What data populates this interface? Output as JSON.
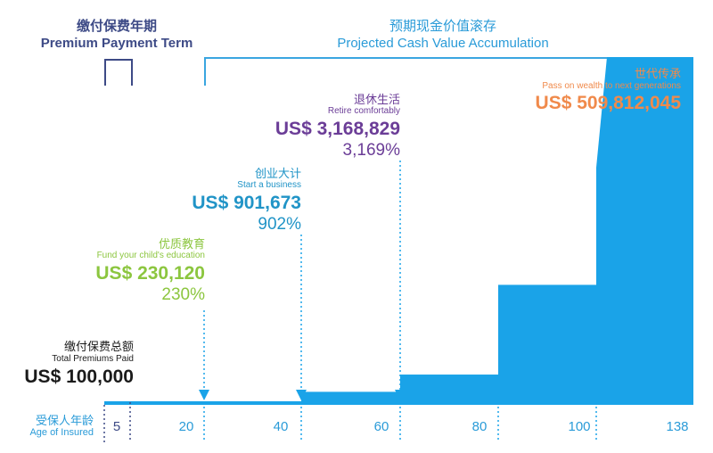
{
  "colors": {
    "navy": "#3d4a86",
    "blue": "#2a9bd8",
    "bright_blue": "#1aa3e8",
    "green": "#8cc63f",
    "teal": "#2194c7",
    "purple": "#6b3d97",
    "orange": "#f08a4b",
    "black": "#1a1a1a"
  },
  "header": {
    "term_cn": "缴付保费年期",
    "term_en": "Premium Payment Term",
    "projected_cn": "预期现金价值滚存",
    "projected_en": "Projected Cash Value Accumulation"
  },
  "chart_data": {
    "type": "area",
    "title": "Projected Cash Value Accumulation",
    "xlabel_cn": "受保人年龄",
    "xlabel_en": "Age of Insured",
    "x_ticks": [
      "5",
      "20",
      "40",
      "60",
      "80",
      "100",
      "138"
    ],
    "premium_payment_term_ages": [
      0,
      5
    ],
    "steps": [
      {
        "from_age": 40,
        "to_age": 60,
        "level": 0.03
      },
      {
        "from_age": 60,
        "to_age": 80,
        "level": 0.08
      },
      {
        "from_age": 80,
        "to_age": 100,
        "level": 0.34
      },
      {
        "from_age": 100,
        "to_age": 138,
        "level": 1.0
      }
    ],
    "milestones": [
      {
        "key": "premiums",
        "cn": "缴付保费总额",
        "en": "Total Premiums Paid",
        "value": "US$ 100,000",
        "percent": ""
      },
      {
        "key": "education",
        "age": 21,
        "cn": "优质教育",
        "en": "Fund your child's education",
        "value": "US$ 230,120",
        "percent": "230%"
      },
      {
        "key": "business",
        "age": 40,
        "cn": "创业大计",
        "en": "Start a business",
        "value": "US$ 901,673",
        "percent": "902%"
      },
      {
        "key": "retire",
        "age": 60,
        "cn": "退休生活",
        "en": "Retire comfortably",
        "value": "US$ 3,168,829",
        "percent": "3,169%"
      },
      {
        "key": "legacy",
        "age": 100,
        "cn": "世代传承",
        "en": "Pass on wealth to next generations",
        "value": "US$ 509,812,045",
        "percent": ""
      }
    ]
  }
}
